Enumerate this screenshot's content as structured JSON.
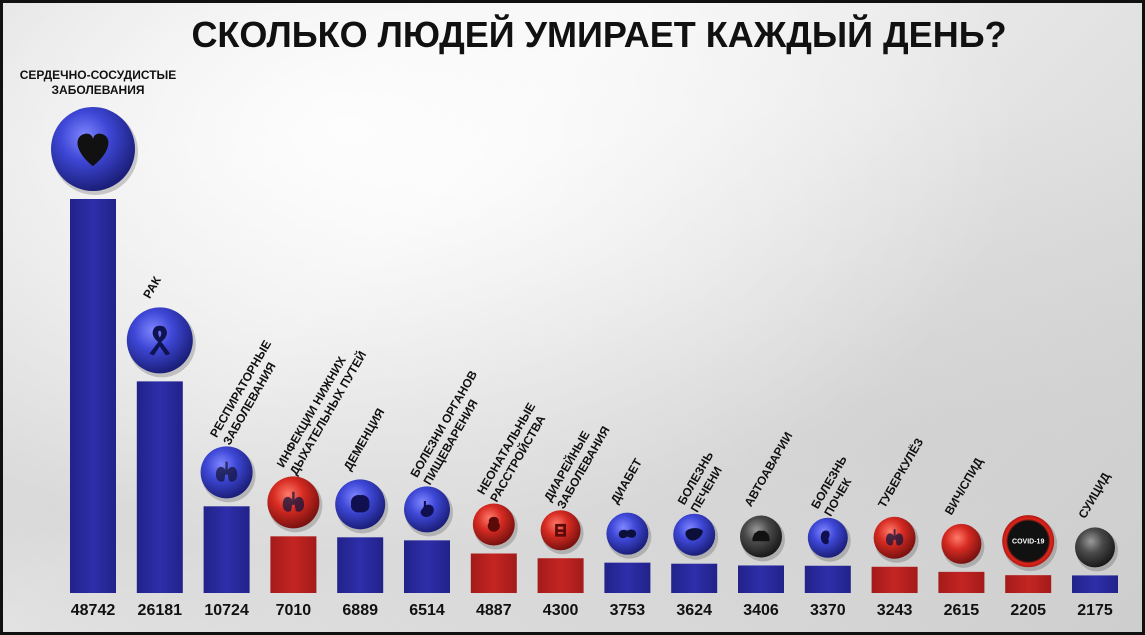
{
  "chart_data": {
    "type": "bar",
    "title": "СКОЛЬКО ЛЮДЕЙ УМИРАЕТ КАЖДЫЙ ДЕНЬ?",
    "xlabel": "",
    "ylabel": "",
    "ylim": [
      0,
      48742
    ],
    "grid": false,
    "categories": [
      [
        "СЕРДЕЧНО-СОСУДИСТЫЕ",
        "ЗАБОЛЕВАНИЯ"
      ],
      [
        "РАК"
      ],
      [
        "РЕСПИРАТОРНЫЕ",
        "ЗАБОЛЕВАНИЯ"
      ],
      [
        "ИНФЕКЦИИ НИЖНИХ",
        "ДЫХАТЕЛЬНЫХ ПУТЕЙ"
      ],
      [
        "ДЕМЕНЦИЯ"
      ],
      [
        "БОЛЕЗНИ ОРГАНОВ",
        "ПИЩЕВАРЕНИЯ"
      ],
      [
        "НЕОНАТАЛЬНЫЕ",
        "РАССТРОЙСТВА"
      ],
      [
        "ДИАРЕЙНЫЕ",
        "ЗАБОЛЕВАНИЯ"
      ],
      [
        "ДИАБЕТ"
      ],
      [
        "БОЛЕЗНЬ",
        "ПЕЧЕНИ"
      ],
      [
        "АВТОАВАРИИ"
      ],
      [
        "БОЛЕЗНЬ",
        "ПОЧЕК"
      ],
      [
        "ТУБЕРКУЛЁЗ"
      ],
      [
        "ВИЧ/СПИД"
      ],
      [
        "COVID-19"
      ],
      [
        "СУИЦИД"
      ]
    ],
    "values": [
      48742,
      26181,
      10724,
      7010,
      6889,
      6514,
      4887,
      4300,
      3753,
      3624,
      3406,
      3370,
      3243,
      2615,
      2205,
      2175
    ],
    "colors": [
      "#2a2a9c",
      "#2a2a9c",
      "#2a2a9c",
      "#b8201f",
      "#2a2a9c",
      "#2a2a9c",
      "#b8201f",
      "#b8201f",
      "#2a2a9c",
      "#2a2a9c",
      "#2a2a9c",
      "#2a2a9c",
      "#b8201f",
      "#b8201f",
      "#b8201f",
      "#2a2a9c"
    ],
    "icon_colors": [
      "blue",
      "blue",
      "blue",
      "red",
      "blue",
      "blue",
      "red",
      "red",
      "blue",
      "blue",
      "dark",
      "blue",
      "red",
      "red",
      "covid",
      "dark"
    ],
    "icons": [
      "heart-icon",
      "ribbon-icon",
      "lungs-icon",
      "lungs-icon",
      "brain-icon",
      "stomach-icon",
      "baby-icon",
      "intestine-icon",
      "pancreas-icon",
      "liver-icon",
      "car-icon",
      "kidney-icon",
      "lungs-icon",
      "virus-icon",
      "covid-icon",
      "person-icon"
    ],
    "colors_meaning": {
      "blue": "#2a2a9c",
      "red": "#b8201f"
    }
  }
}
